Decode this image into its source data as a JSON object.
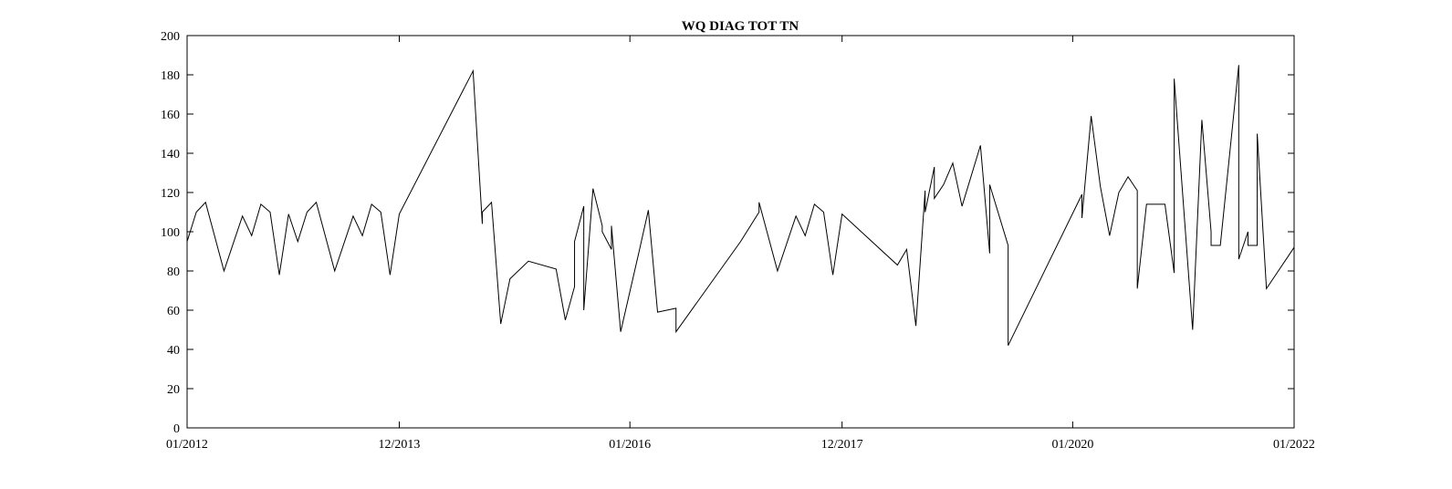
{
  "chart_data": {
    "type": "line",
    "title": "WQ DIAG TOT TN",
    "color": "#000000",
    "x": [
      "2012-01",
      "2012-02",
      "2012-03",
      "2012-05",
      "2012-07",
      "2012-08",
      "2012-09",
      "2012-10",
      "2012-11",
      "2012-12",
      "2013-01",
      "2013-02",
      "2013-03",
      "2013-05",
      "2013-07",
      "2013-08",
      "2013-09",
      "2013-10",
      "2013-11",
      "2013-12",
      "2014-08",
      "2014-09",
      "2014-09",
      "2014-10",
      "2014-11",
      "2014-12",
      "2015-02",
      "2015-05",
      "2015-06",
      "2015-07",
      "2015-07",
      "2015-08",
      "2015-08",
      "2015-09",
      "2015-10",
      "2015-10",
      "2015-11",
      "2015-11",
      "2015-12",
      "2016-02",
      "2016-03",
      "2016-04",
      "2016-06",
      "2016-06",
      "2017-01",
      "2017-03",
      "2017-03",
      "2017-05",
      "2017-07",
      "2017-08",
      "2017-09",
      "2017-10",
      "2017-11",
      "2017-12",
      "2018-06",
      "2018-07",
      "2018-08",
      "2018-09",
      "2018-09",
      "2018-10",
      "2018-10",
      "2018-11",
      "2018-12",
      "2019-01",
      "2019-03",
      "2019-04",
      "2019-04",
      "2019-06",
      "2019-06",
      "2020-02",
      "2020-02",
      "2020-03",
      "2020-04",
      "2020-05",
      "2020-06",
      "2020-07",
      "2020-08",
      "2020-08",
      "2020-09",
      "2020-11",
      "2020-12",
      "2020-12",
      "2021-02",
      "2021-03",
      "2021-04",
      "2021-04",
      "2021-05",
      "2021-07",
      "2021-07",
      "2021-08",
      "2021-08",
      "2021-09",
      "2021-09",
      "2021-10",
      "2022-01"
    ],
    "values": [
      95,
      110,
      115,
      80,
      108,
      98,
      114,
      110,
      78,
      109,
      95,
      110,
      115,
      80,
      108,
      98,
      114,
      110,
      78,
      109,
      182,
      104,
      110,
      115,
      53,
      76,
      85,
      81,
      55,
      72,
      95,
      113,
      60,
      122,
      103,
      100,
      91,
      103,
      49,
      90,
      111,
      59,
      61,
      49,
      95,
      110,
      115,
      80,
      108,
      98,
      114,
      110,
      78,
      109,
      83,
      91,
      52,
      121,
      110,
      133,
      117,
      124,
      135,
      113,
      144,
      89,
      124,
      93,
      42,
      119,
      107,
      159,
      123,
      98,
      120,
      128,
      121,
      71,
      114,
      114,
      79,
      178,
      50,
      157,
      100,
      93,
      93,
      185,
      86,
      100,
      93,
      93,
      150,
      71,
      92
    ],
    "xlim": [
      "2012-01",
      "2022-01"
    ],
    "xticks": [
      {
        "value": "2012-01",
        "label": "01/2012"
      },
      {
        "value": "2013-12",
        "label": "12/2013"
      },
      {
        "value": "2016-01",
        "label": "01/2016"
      },
      {
        "value": "2017-12",
        "label": "12/2017"
      },
      {
        "value": "2020-01",
        "label": "01/2020"
      },
      {
        "value": "2022-01",
        "label": "01/2022"
      }
    ],
    "ylim": [
      0,
      200
    ],
    "yticks": [
      0,
      20,
      40,
      60,
      80,
      100,
      120,
      140,
      160,
      180,
      200
    ],
    "grid": false
  }
}
